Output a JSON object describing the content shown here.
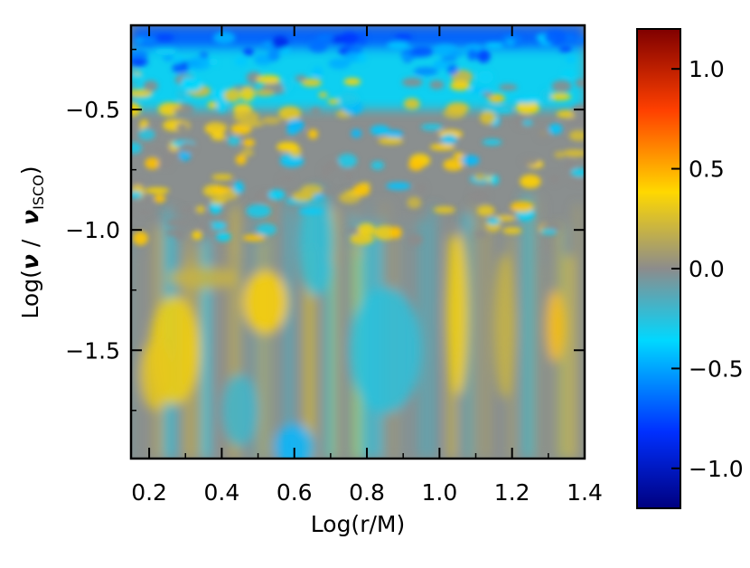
{
  "chart_data": {
    "type": "heatmap",
    "title": "",
    "xlabel": "Log(r/M)",
    "ylabel": {
      "prefix": "Log(",
      "nu": "ν",
      "slash": " /  ",
      "nu2": "ν",
      "subscript": "ISCO",
      "suffix": ")"
    },
    "xlim": [
      0.15,
      1.4
    ],
    "ylim": [
      -1.95,
      -0.15
    ],
    "xticks": [
      0.2,
      0.4,
      0.6,
      0.8,
      1.0,
      1.2,
      1.4
    ],
    "xtick_labels": [
      "0.2",
      "0.4",
      "0.6",
      "0.8",
      "1.0",
      "1.2",
      "1.4"
    ],
    "yticks": [
      -0.5,
      -1.0,
      -1.5
    ],
    "ytick_labels": [
      "−0.5",
      "−1.0",
      "−1.5"
    ],
    "colorbar": {
      "range": [
        -1.2,
        1.2
      ],
      "ticks": [
        1.0,
        0.5,
        0.0,
        -0.5,
        -1.0
      ],
      "tick_labels": [
        "1.0",
        "0.5",
        "0.0",
        "−0.5",
        "−1.0"
      ],
      "colors": [
        "#00007f",
        "#0030ff",
        "#00d8ff",
        "#8c8c8c",
        "#ffd800",
        "#ff4000",
        "#7f0000"
      ]
    },
    "description_values": {
      "features": [
        {
          "region": "top band (Log ν/νISCO > -0.35)",
          "value": -0.8
        },
        {
          "region": "mid band (-1.0 to -0.5)",
          "value": 0.3
        },
        {
          "region": "Log(r/M) 0.2-0.35, Log ν -1.6 to -1.4",
          "value": 0.35
        },
        {
          "region": "Log(r/M) 0.45-0.6, Log ν -1.4 to -1.2",
          "value": 0.4
        },
        {
          "region": "Log(r/M) 0.55-0.65, Log ν -1.9",
          "value": -0.45
        },
        {
          "region": "Log(r/M) 1.0-1.1, Log ν -1.5 to -1.1",
          "value": 0.35
        },
        {
          "region": "Log(r/M) 1.3-1.35, Log ν -1.4",
          "value": 0.45
        }
      ]
    }
  }
}
